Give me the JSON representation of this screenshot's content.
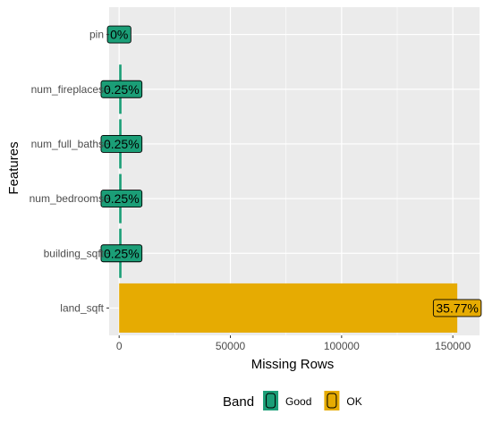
{
  "chart_data": {
    "type": "bar",
    "orientation": "horizontal",
    "categories": [
      "pin",
      "num_fireplaces",
      "num_full_baths",
      "num_bedrooms",
      "building_sqft",
      "land_sqft"
    ],
    "values": [
      0,
      1060,
      1060,
      1060,
      1060,
      152000
    ],
    "labels": [
      "0%",
      "0.25%",
      "0.25%",
      "0.25%",
      "0.25%",
      "35.77%"
    ],
    "bands": [
      "Good",
      "Good",
      "Good",
      "Good",
      "Good",
      "OK"
    ],
    "xlabel": "Missing Rows",
    "ylabel": "Features",
    "xlim": [
      -4500,
      162000
    ],
    "xticks": [
      0,
      50000,
      100000,
      150000
    ],
    "xtick_labels": [
      "0",
      "50000",
      "100000",
      "150000"
    ],
    "grid": true,
    "legend": {
      "title": "Band",
      "position": "bottom",
      "items": [
        {
          "label": "Good",
          "color": "#1b9e77"
        },
        {
          "label": "OK",
          "color": "#e6ab02"
        }
      ]
    },
    "colors": {
      "Good": "#1b9e77",
      "OK": "#e6ab02",
      "panel": "#ebebeb",
      "grid": "#ffffff"
    }
  }
}
